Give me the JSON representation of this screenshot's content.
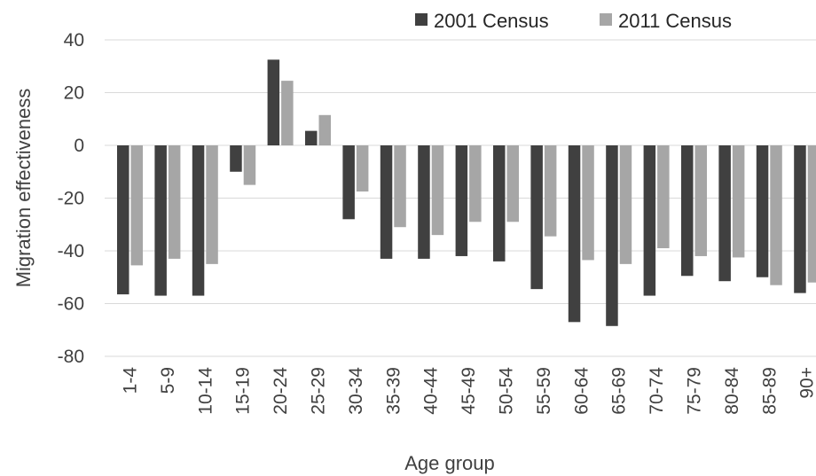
{
  "chart_data": {
    "type": "bar",
    "xlabel": "Age group",
    "ylabel": "Migration effectiveness",
    "ylim": [
      -80,
      40
    ],
    "yticks": [
      40,
      20,
      0,
      -20,
      -40,
      -60,
      -80
    ],
    "grid": true,
    "legend_position": "top-right",
    "categories": [
      "1-4",
      "5-9",
      "10-14",
      "15-19",
      "20-24",
      "25-29",
      "30-34",
      "35-39",
      "40-44",
      "45-49",
      "50-54",
      "55-59",
      "60-64",
      "65-69",
      "70-74",
      "75-79",
      "80-84",
      "85-89",
      "90+"
    ],
    "series": [
      {
        "name": "2001 Census",
        "color": "#404040",
        "values": [
          -56.5,
          -57,
          -57,
          -10,
          32.5,
          5.5,
          -28,
          -43,
          -43,
          -42,
          -44,
          -54.5,
          -67,
          -68.5,
          -57,
          -49.5,
          -51.5,
          -50,
          -56
        ]
      },
      {
        "name": "2011 Census",
        "color": "#a6a6a6",
        "values": [
          -45.5,
          -43,
          -45,
          -15,
          24.5,
          11.5,
          -17.5,
          -31,
          -34,
          -29,
          -29,
          -34.5,
          -43.5,
          -45,
          -39,
          -42,
          -42.5,
          -53,
          -52
        ]
      }
    ]
  }
}
